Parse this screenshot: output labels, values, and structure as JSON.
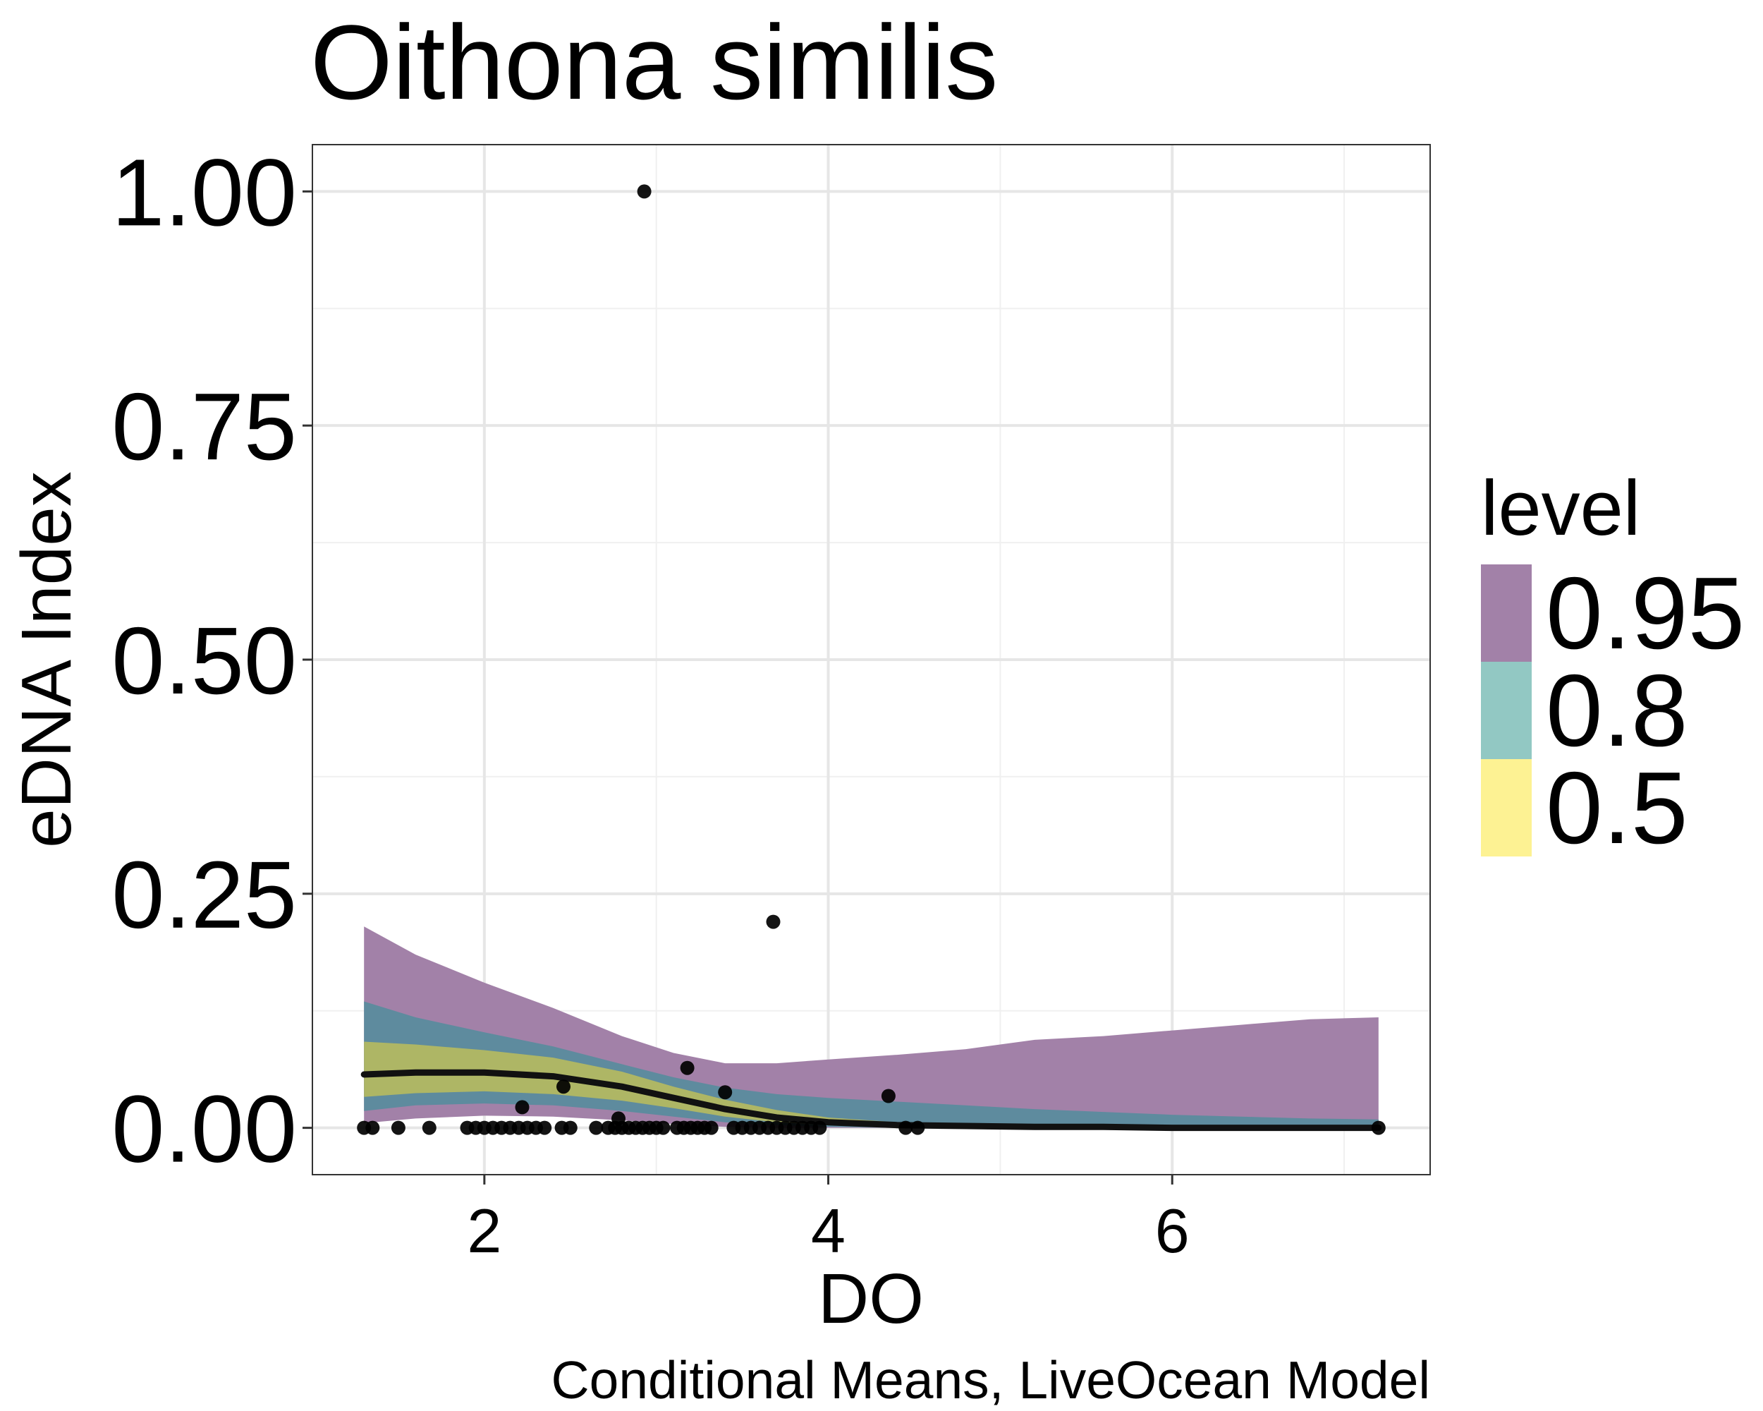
{
  "chart_data": {
    "type": "area",
    "title": "Oithona similis",
    "xlabel": "DO",
    "ylabel": "eDNA Index",
    "caption": "Conditional Means, LiveOcean Model",
    "xlim": [
      1.0,
      7.5
    ],
    "ylim": [
      -0.05,
      1.05
    ],
    "x_ticks": [
      2,
      4,
      6
    ],
    "x_tick_labels": [
      "2",
      "4",
      "6"
    ],
    "y_ticks": [
      0,
      0.25,
      0.5,
      0.75,
      1.0
    ],
    "y_tick_labels": [
      "0.00",
      "0.25",
      "0.50",
      "0.75",
      "1.00"
    ],
    "grid": true,
    "legend": {
      "title": "level",
      "placement": "right",
      "entries": [
        {
          "label": "0.95",
          "color": "#A281A8"
        },
        {
          "label": "0.8",
          "color": "#92C8C3"
        },
        {
          "label": "0.5",
          "color": "#FDF293"
        }
      ]
    },
    "ribbon_x": [
      1.3,
      1.6,
      2.0,
      2.4,
      2.8,
      3.1,
      3.4,
      3.7,
      4.0,
      4.4,
      4.8,
      5.2,
      5.6,
      6.0,
      6.4,
      6.8,
      7.2
    ],
    "bands": [
      {
        "level": "0.95",
        "color": "#A281A8",
        "upper": [
          0.215,
          0.185,
          0.155,
          0.128,
          0.098,
          0.08,
          0.069,
          0.069,
          0.073,
          0.078,
          0.084,
          0.094,
          0.098,
          0.104,
          0.11,
          0.116,
          0.118
        ],
        "lower": [
          0.005,
          0.01,
          0.013,
          0.012,
          0.008,
          0.004,
          0.001,
          0,
          0,
          0,
          0,
          0,
          0,
          0,
          0,
          0,
          0
        ]
      },
      {
        "level": "0.8",
        "color": "#5E8B9E",
        "upper": [
          0.135,
          0.118,
          0.102,
          0.087,
          0.068,
          0.054,
          0.043,
          0.036,
          0.032,
          0.028,
          0.024,
          0.02,
          0.017,
          0.014,
          0.012,
          0.01,
          0.009
        ],
        "lower": [
          0.018,
          0.024,
          0.026,
          0.024,
          0.018,
          0.012,
          0.006,
          0.003,
          0.001,
          0,
          0,
          0,
          0,
          0,
          0,
          0,
          0
        ]
      },
      {
        "level": "0.5",
        "color": "#AEB665",
        "upper": [
          0.092,
          0.089,
          0.083,
          0.075,
          0.06,
          0.044,
          0.03,
          0.019,
          0.011,
          0.006,
          0.004,
          0.003,
          0.002,
          0.001,
          0.001,
          0.001,
          0.001
        ],
        "lower": [
          0.033,
          0.037,
          0.039,
          0.036,
          0.029,
          0.021,
          0.012,
          0.006,
          0.003,
          0.001,
          0,
          0,
          0,
          0,
          0,
          0,
          0
        ]
      }
    ],
    "mean_line": {
      "x": [
        1.3,
        1.6,
        2.0,
        2.4,
        2.8,
        3.1,
        3.4,
        3.7,
        4.0,
        4.4,
        4.8,
        5.2,
        5.6,
        6.0,
        6.4,
        6.8,
        7.2
      ],
      "y": [
        0.057,
        0.059,
        0.059,
        0.055,
        0.044,
        0.032,
        0.02,
        0.011,
        0.006,
        0.003,
        0.002,
        0.001,
        0.001,
        0.0,
        0.0,
        0.0,
        0.0
      ]
    },
    "points": [
      {
        "x": 2.93,
        "y": 1.0
      },
      {
        "x": 3.68,
        "y": 0.22
      },
      {
        "x": 3.18,
        "y": 0.064
      },
      {
        "x": 4.35,
        "y": 0.034
      },
      {
        "x": 2.22,
        "y": 0.022
      },
      {
        "x": 2.46,
        "y": 0.044
      },
      {
        "x": 3.4,
        "y": 0.038
      },
      {
        "x": 2.78,
        "y": 0.01
      },
      {
        "x": 1.3,
        "y": 0
      },
      {
        "x": 1.35,
        "y": 0
      },
      {
        "x": 1.5,
        "y": 0
      },
      {
        "x": 1.68,
        "y": 0
      },
      {
        "x": 1.9,
        "y": 0
      },
      {
        "x": 1.95,
        "y": 0
      },
      {
        "x": 2.0,
        "y": 0
      },
      {
        "x": 2.05,
        "y": 0
      },
      {
        "x": 2.1,
        "y": 0
      },
      {
        "x": 2.15,
        "y": 0
      },
      {
        "x": 2.2,
        "y": 0
      },
      {
        "x": 2.25,
        "y": 0
      },
      {
        "x": 2.3,
        "y": 0
      },
      {
        "x": 2.35,
        "y": 0
      },
      {
        "x": 2.45,
        "y": 0
      },
      {
        "x": 2.5,
        "y": 0
      },
      {
        "x": 2.65,
        "y": 0
      },
      {
        "x": 2.72,
        "y": 0
      },
      {
        "x": 2.76,
        "y": 0
      },
      {
        "x": 2.8,
        "y": 0
      },
      {
        "x": 2.84,
        "y": 0
      },
      {
        "x": 2.88,
        "y": 0
      },
      {
        "x": 2.92,
        "y": 0
      },
      {
        "x": 2.96,
        "y": 0
      },
      {
        "x": 3.0,
        "y": 0
      },
      {
        "x": 3.04,
        "y": 0
      },
      {
        "x": 3.12,
        "y": 0
      },
      {
        "x": 3.16,
        "y": 0
      },
      {
        "x": 3.2,
        "y": 0
      },
      {
        "x": 3.24,
        "y": 0
      },
      {
        "x": 3.28,
        "y": 0
      },
      {
        "x": 3.32,
        "y": 0
      },
      {
        "x": 3.45,
        "y": 0
      },
      {
        "x": 3.5,
        "y": 0
      },
      {
        "x": 3.55,
        "y": 0
      },
      {
        "x": 3.6,
        "y": 0
      },
      {
        "x": 3.65,
        "y": 0
      },
      {
        "x": 3.7,
        "y": 0
      },
      {
        "x": 3.75,
        "y": 0
      },
      {
        "x": 3.8,
        "y": 0
      },
      {
        "x": 3.85,
        "y": 0
      },
      {
        "x": 3.9,
        "y": 0
      },
      {
        "x": 3.95,
        "y": 0
      },
      {
        "x": 4.45,
        "y": 0
      },
      {
        "x": 4.52,
        "y": 0
      },
      {
        "x": 7.2,
        "y": 0
      }
    ]
  }
}
